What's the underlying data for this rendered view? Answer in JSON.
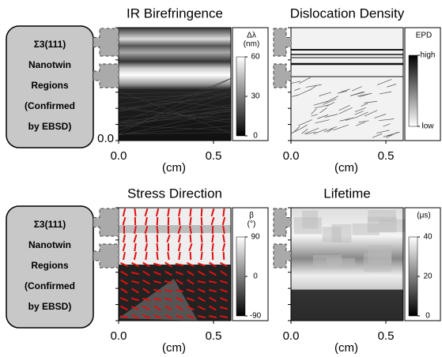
{
  "panels": [
    {
      "title": "IR Birefringence",
      "colorbar": {
        "label_lines": [
          "Δλ",
          "(nm)"
        ],
        "ticks": [
          "60",
          "30",
          "0"
        ]
      },
      "x_ticks": [
        "0.0",
        "0.5"
      ],
      "x_label": "(cm)",
      "y_tick": "0.0"
    },
    {
      "title": "Dislocation Density",
      "colorbar": {
        "label_lines": [
          "EPD"
        ],
        "ticks": [
          "high",
          "low"
        ]
      },
      "x_ticks": [
        "0.0",
        "0.5"
      ],
      "x_label": "(cm)"
    },
    {
      "title": "Stress Direction",
      "colorbar": {
        "label_lines": [
          "β",
          "(°)"
        ],
        "ticks": [
          "90",
          "0",
          "-90"
        ]
      },
      "x_ticks": [
        "0.0",
        "0.5"
      ],
      "x_label": "(cm)"
    },
    {
      "title": "Lifetime",
      "colorbar": {
        "label_lines": [
          "(μs)"
        ],
        "ticks": [
          "40",
          "20",
          "0"
        ]
      },
      "x_ticks": [
        "0.0",
        "0.5"
      ],
      "x_label": "(cm)"
    }
  ],
  "callouts": [
    {
      "lines": [
        "Σ3(111)",
        "Nanotwin",
        "Regions",
        "(Confirmed",
        "by EBSD)"
      ]
    },
    {
      "lines": [
        "Σ3(111)",
        "Nanotwin",
        "Regions",
        "(Confirmed",
        "by EBSD)"
      ]
    }
  ]
}
